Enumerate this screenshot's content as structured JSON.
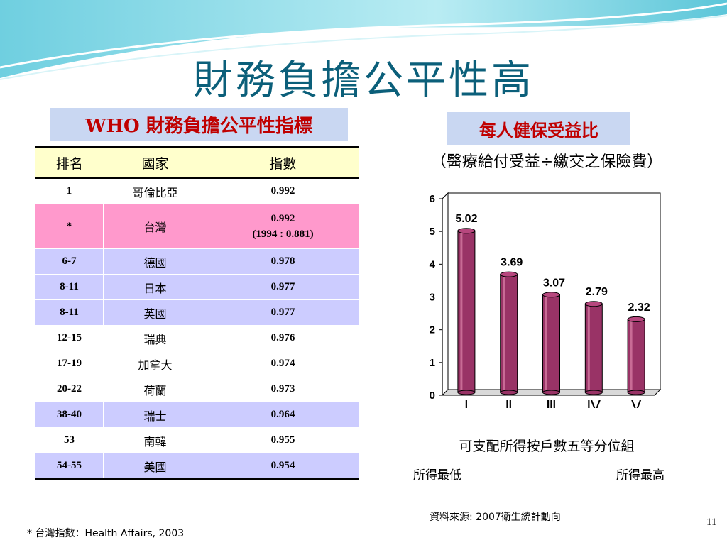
{
  "title": "財務負擔公平性高",
  "who_label": "WHO 財務負擔公平性指標",
  "table": {
    "headers": [
      "排名",
      "國家",
      "指數"
    ],
    "rows": [
      {
        "rank": "1",
        "country": "哥倫比亞",
        "index": "0.992",
        "bg": "white"
      },
      {
        "rank": "*",
        "country": "台灣",
        "index": "0.992",
        "index_note": "(1994 : 0.881)",
        "bg": "pink"
      },
      {
        "rank": "6-7",
        "country": "德國",
        "index": "0.978",
        "bg": "lav"
      },
      {
        "rank": "8-11",
        "country": "日本",
        "index": "0.977",
        "bg": "lav"
      },
      {
        "rank": "8-11",
        "country": "英國",
        "index": "0.977",
        "bg": "lav"
      },
      {
        "rank": "12-15",
        "country": "瑞典",
        "index": "0.976",
        "bg": "white"
      },
      {
        "rank": "17-19",
        "country": "加拿大",
        "index": "0.974",
        "bg": "white"
      },
      {
        "rank": "20-22",
        "country": "荷蘭",
        "index": "0.973",
        "bg": "white"
      },
      {
        "rank": "38-40",
        "country": "瑞士",
        "index": "0.964",
        "bg": "lav"
      },
      {
        "rank": "53",
        "country": "南韓",
        "index": "0.955",
        "bg": "white"
      },
      {
        "rank": "54-55",
        "country": "美國",
        "index": "0.954",
        "bg": "lav"
      }
    ]
  },
  "ratio_label": "每人健保受益比",
  "ratio_subtitle": "（醫療給付受益÷繳交之保險費）",
  "chart_data": {
    "type": "bar",
    "categories": [
      "Ⅰ",
      "Ⅱ",
      "Ⅲ",
      "Ⅳ",
      "Ⅴ"
    ],
    "values": [
      5.02,
      3.69,
      3.07,
      2.79,
      2.32
    ],
    "ylim": [
      0,
      6
    ],
    "yticks": [
      0,
      1,
      2,
      3,
      4,
      5,
      6
    ],
    "xlabel": "可支配所得按戶數五等分位組",
    "bar_color": "#993366",
    "grid": false
  },
  "low_label": "所得最低",
  "high_label": "所得最高",
  "source": "資料來源: 2007衛生統計動向",
  "page_number": "11",
  "footnote": "*  台灣指數：Health  Affairs, 2003"
}
